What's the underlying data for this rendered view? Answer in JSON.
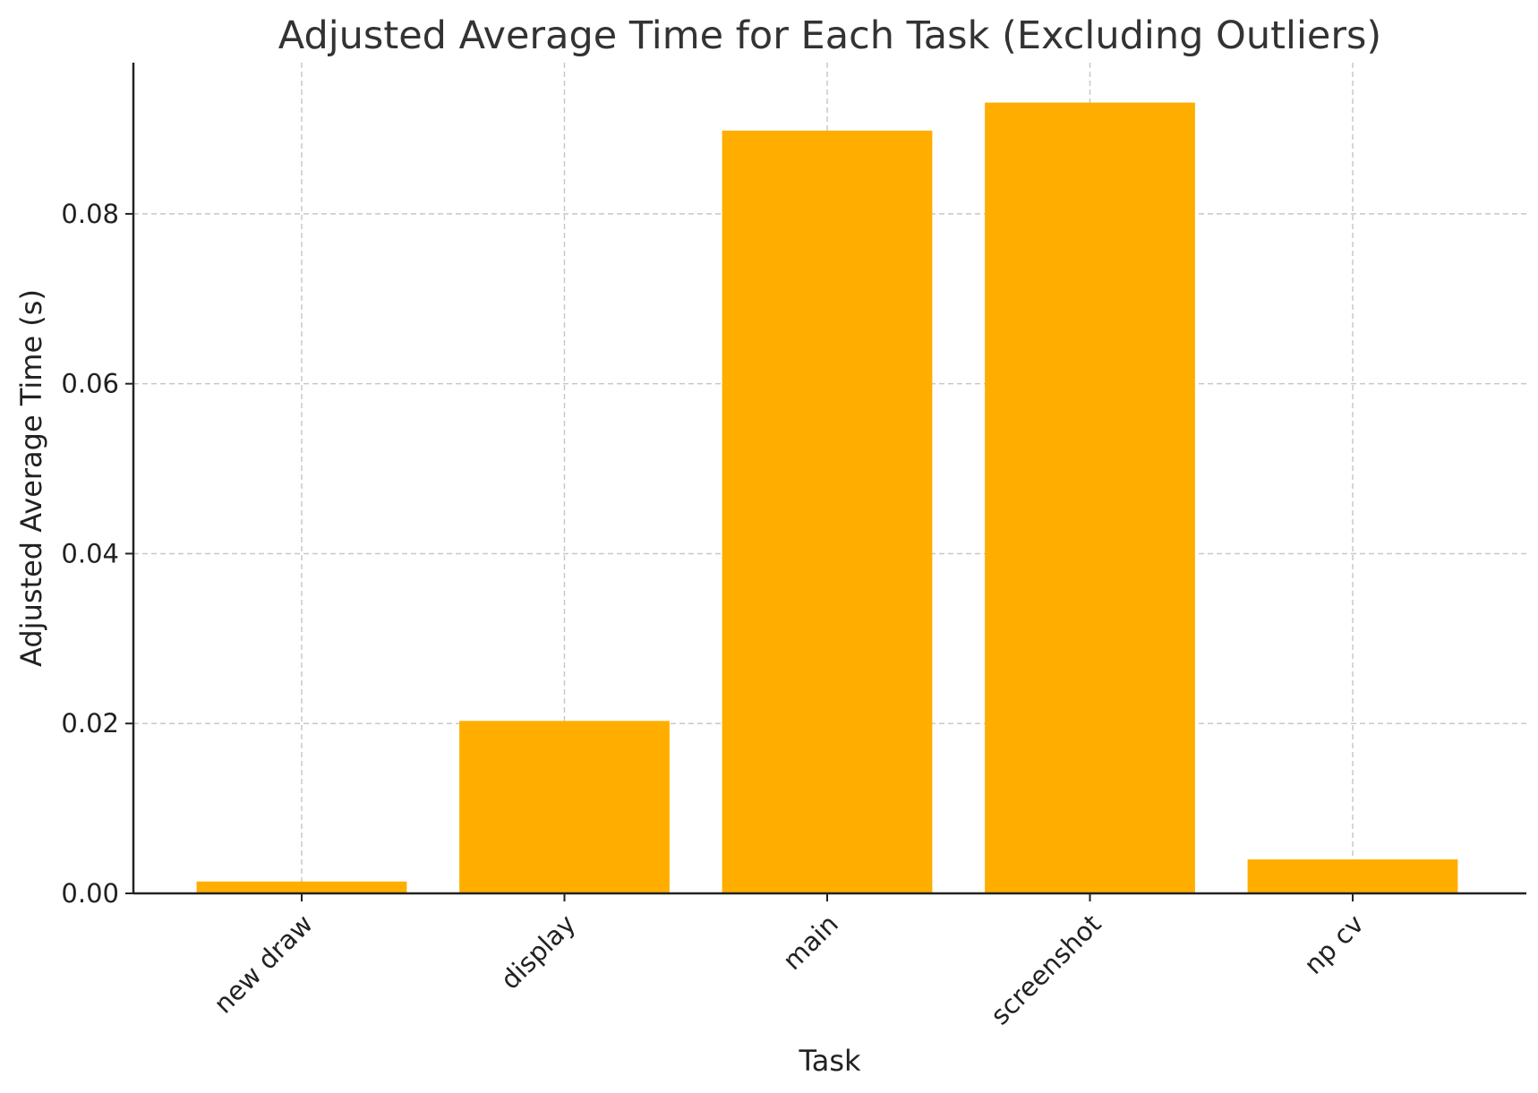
{
  "chart_data": {
    "type": "bar",
    "title": "Adjusted Average Time for Each Task (Excluding Outliers)",
    "xlabel": "Task",
    "ylabel": "Adjusted Average Time (s)",
    "categories": [
      "new draw",
      "display",
      "main",
      "screenshot",
      "np cv"
    ],
    "values": [
      0.0014,
      0.0203,
      0.0898,
      0.0931,
      0.004
    ],
    "yticks": [
      0.0,
      0.02,
      0.04,
      0.06,
      0.08
    ],
    "ytick_labels": [
      "0.00",
      "0.02",
      "0.04",
      "0.06",
      "0.08"
    ],
    "ylim": [
      0,
      0.0978
    ],
    "bar_color": "#FFAE00",
    "grid": true,
    "legend": "none"
  }
}
